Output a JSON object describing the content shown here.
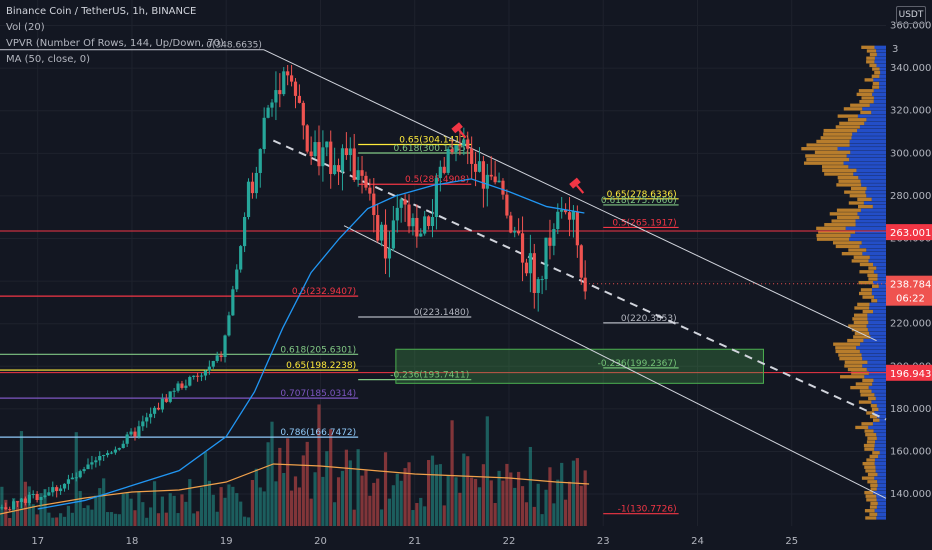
{
  "legend": {
    "title": "Binance Coin / TetherUS, 1h, BINANCE",
    "vol": "Vol (20)",
    "vpvr": "VPVR (Number Of Rows, 144, Up/Down, 70)",
    "ma": "MA (50, close, 0)"
  },
  "axis": {
    "unit": "USDT",
    "unit_digit": "3"
  },
  "colors": {
    "background": "#131722",
    "up": "#26a69a",
    "down": "#ef5350",
    "ma": "#2196f3",
    "vol_ma": "#f0a04b",
    "fib_white": "#b2b5be",
    "fib_yellow": "#ffeb3b",
    "fib_green": "#81c784",
    "fib_red": "#f23645",
    "fib_purple": "#7e57c2",
    "fib_lightblue": "#90caf9",
    "vpvr_up": "#2962ff",
    "vpvr_down": "#f0a030"
  },
  "chart_data": {
    "type": "candlestick",
    "symbol": "BNBUSDT",
    "interval": "1h",
    "x_tick_labels": [
      "17",
      "18",
      "19",
      "20",
      "21",
      "22",
      "23",
      "24",
      "25"
    ],
    "y_tick_labels": [
      "140.0000",
      "160.0000",
      "180.0000",
      "200.0000",
      "220.0000",
      "240.0000",
      "260.0000",
      "280.0000",
      "300.0000",
      "320.0000",
      "340.0000",
      "360.0000"
    ],
    "y_ticks": [
      140,
      160,
      180,
      200,
      220,
      240,
      260,
      280,
      300,
      320,
      340,
      360
    ],
    "ylim": [
      125,
      372
    ],
    "xlim": [
      16.6,
      26.0
    ],
    "anchors": [
      [
        16.6,
        133
      ],
      [
        16.9,
        137
      ],
      [
        17.2,
        142
      ],
      [
        17.5,
        149
      ],
      [
        17.8,
        160
      ],
      [
        18.0,
        166
      ],
      [
        18.1,
        170
      ],
      [
        18.3,
        180
      ],
      [
        18.5,
        190
      ],
      [
        18.8,
        196
      ],
      [
        19.0,
        206
      ],
      [
        19.1,
        232
      ],
      [
        19.2,
        258
      ],
      [
        19.3,
        285
      ],
      [
        19.45,
        315
      ],
      [
        19.6,
        334
      ],
      [
        19.7,
        342
      ],
      [
        19.8,
        322
      ],
      [
        19.9,
        302
      ],
      [
        20.05,
        297
      ],
      [
        20.3,
        300
      ],
      [
        20.5,
        283
      ],
      [
        20.75,
        252
      ],
      [
        20.9,
        275
      ],
      [
        21.1,
        256
      ],
      [
        21.3,
        285
      ],
      [
        21.45,
        302
      ],
      [
        21.6,
        298
      ],
      [
        21.8,
        288
      ],
      [
        22.0,
        278
      ],
      [
        22.1,
        266
      ],
      [
        22.25,
        248
      ],
      [
        22.35,
        238
      ],
      [
        22.5,
        266
      ],
      [
        22.65,
        274
      ],
      [
        22.75,
        262
      ],
      [
        22.85,
        239
      ]
    ],
    "ma_anchors": [
      [
        17.0,
        133
      ],
      [
        17.5,
        137
      ],
      [
        18.0,
        144
      ],
      [
        18.5,
        151
      ],
      [
        19.0,
        167
      ],
      [
        19.3,
        188
      ],
      [
        19.6,
        218
      ],
      [
        19.9,
        244
      ],
      [
        20.2,
        260
      ],
      [
        20.5,
        274
      ],
      [
        20.8,
        280
      ],
      [
        21.2,
        285
      ],
      [
        21.6,
        288
      ],
      [
        22.0,
        282
      ],
      [
        22.4,
        275
      ],
      [
        22.8,
        272
      ]
    ],
    "vol_ma_anchors": [
      [
        16.6,
        12
      ],
      [
        17.0,
        20
      ],
      [
        17.5,
        28
      ],
      [
        18.0,
        34
      ],
      [
        18.5,
        36
      ],
      [
        19.0,
        44
      ],
      [
        19.5,
        62
      ],
      [
        20.0,
        60
      ],
      [
        20.5,
        56
      ],
      [
        21.0,
        52
      ],
      [
        21.5,
        50
      ],
      [
        22.0,
        48
      ],
      [
        22.5,
        44
      ],
      [
        22.85,
        42
      ]
    ],
    "current_price": "238.7848",
    "countdown": "06:22",
    "price_badges": [
      {
        "value": 263.0016,
        "label": "263.0016"
      },
      {
        "value": 196.9435,
        "label": "196.9435"
      }
    ],
    "fib_levels": [
      {
        "label": "0(348.6635)",
        "value": 348.6635,
        "x0": 16.6,
        "x1": 19.4,
        "color_key": "fib_white"
      },
      {
        "label": "0.5(232.9407)",
        "value": 232.9407,
        "x0": 16.6,
        "x1": 20.4,
        "color_key": "fib_red"
      },
      {
        "label": "0.618(205.6301)",
        "value": 205.6301,
        "x0": 16.6,
        "x1": 20.4,
        "color_key": "fib_green"
      },
      {
        "label": "0.65(198.2238)",
        "value": 198.2238,
        "x0": 16.6,
        "x1": 20.4,
        "color_key": "fib_yellow"
      },
      {
        "label": "0.707(185.0314)",
        "value": 185.0314,
        "x0": 16.6,
        "x1": 20.4,
        "color_key": "fib_purple"
      },
      {
        "label": "0.786(166.7472)",
        "value": 166.7472,
        "x0": 16.6,
        "x1": 20.4,
        "color_key": "fib_lightblue"
      },
      {
        "label": "0.65(304.1417)",
        "value": 304.1417,
        "x0": 20.4,
        "x1": 21.6,
        "color_key": "fib_yellow"
      },
      {
        "label": "0.618(300.1545)",
        "value": 300.1545,
        "x0": 20.4,
        "x1": 21.6,
        "color_key": "fib_green"
      },
      {
        "label": "0.5(285.4908)",
        "value": 285.4908,
        "x0": 20.4,
        "x1": 21.6,
        "color_key": "fib_red"
      },
      {
        "label": "0(223.1480)",
        "value": 223.148,
        "x0": 20.4,
        "x1": 21.6,
        "color_key": "fib_white"
      },
      {
        "label": "-0.236(193.7411)",
        "value": 193.7411,
        "x0": 20.4,
        "x1": 21.6,
        "color_key": "fib_green"
      },
      {
        "label": "0.65(278.6336)",
        "value": 278.6336,
        "x0": 23.0,
        "x1": 23.8,
        "color_key": "fib_yellow"
      },
      {
        "label": "0.618(275.7660)",
        "value": 275.766,
        "x0": 23.0,
        "x1": 23.8,
        "color_key": "fib_green"
      },
      {
        "label": "0.5(265.1917)",
        "value": 265.1917,
        "x0": 23.0,
        "x1": 23.8,
        "color_key": "fib_red"
      },
      {
        "label": "0(220.3853)",
        "value": 220.3853,
        "x0": 23.0,
        "x1": 23.8,
        "color_key": "fib_white"
      },
      {
        "label": "-0.236(199.2367)",
        "value": 199.2367,
        "x0": 23.0,
        "x1": 23.8,
        "color_key": "fib_green"
      },
      {
        "label": "-1(130.7726)",
        "value": 130.7726,
        "x0": 23.0,
        "x1": 23.8,
        "color_key": "fib_red"
      }
    ],
    "horizontal_lines": [
      {
        "value": 263.5,
        "color_key": "fib_red"
      },
      {
        "value": 197.0,
        "color_key": "fib_red"
      }
    ],
    "channel": {
      "upper": [
        [
          19.4,
          348.6
        ],
        [
          25.9,
          212
        ]
      ],
      "lower": [
        [
          20.25,
          266
        ],
        [
          26.0,
          138
        ]
      ],
      "mid": [
        [
          19.5,
          306
        ],
        [
          26.0,
          175
        ]
      ]
    },
    "zone": {
      "x0": 20.8,
      "x1": 24.7,
      "y0": 192,
      "y1": 208
    },
    "markers": [
      {
        "x": 21.45,
        "value": 312
      },
      {
        "x": 22.7,
        "value": 286
      }
    ]
  }
}
